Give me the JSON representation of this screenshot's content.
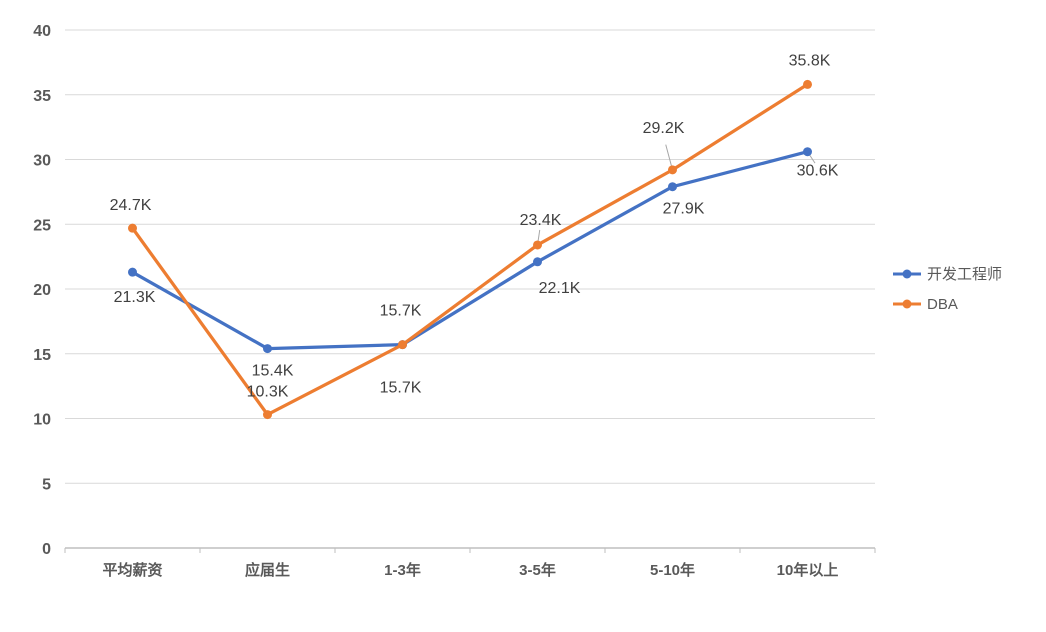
{
  "chart_data": {
    "type": "line",
    "title": "",
    "categories": [
      "平均薪资",
      "应届生",
      "1-3年",
      "3-5年",
      "5-10年",
      "10年以上"
    ],
    "series": [
      {
        "name": "开发工程师",
        "color": "#4472C4",
        "values": [
          21.3,
          15.4,
          15.7,
          22.1,
          27.9,
          30.6
        ],
        "labels": [
          "21.3K",
          "15.4K",
          "15.7K",
          "22.1K",
          "27.9K",
          "30.6K"
        ],
        "label_offsets": [
          [
            2,
            25
          ],
          [
            5,
            22
          ],
          [
            -2,
            43
          ],
          [
            22,
            26
          ],
          [
            11,
            22
          ],
          [
            10,
            19
          ]
        ],
        "label_leaders": [
          false,
          false,
          false,
          false,
          false,
          true
        ]
      },
      {
        "name": "DBA",
        "color": "#ED7D31",
        "values": [
          24.7,
          10.3,
          15.7,
          23.4,
          29.2,
          35.8
        ],
        "labels": [
          "24.7K",
          "10.3K",
          "15.7K",
          "23.4K",
          "29.2K",
          "35.8K"
        ],
        "label_offsets": [
          [
            -2,
            -23
          ],
          [
            0,
            -23
          ],
          [
            -2,
            -34
          ],
          [
            3,
            -25
          ],
          [
            -9,
            -42
          ],
          [
            2,
            -24
          ]
        ],
        "label_leaders": [
          false,
          false,
          false,
          true,
          true,
          false
        ]
      }
    ],
    "ylim": [
      0,
      40
    ],
    "ytick_step": 5,
    "grid": true,
    "legend_position": "right",
    "colors": {
      "grid": "#D9D9D9",
      "axis_line": "#BFBFBF",
      "axis_text": "#595959",
      "label_text": "#404040",
      "leader": "#A6A6A6",
      "background": "#FFFFFF"
    }
  }
}
